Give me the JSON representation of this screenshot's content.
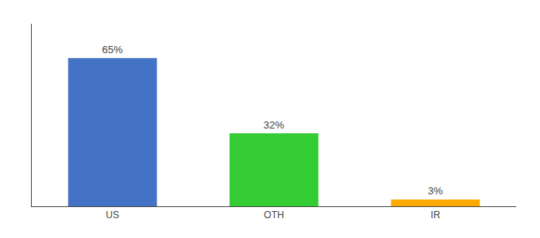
{
  "chart_data": {
    "type": "bar",
    "categories": [
      "US",
      "OTH",
      "IR"
    ],
    "values": [
      65,
      32,
      3
    ],
    "value_labels": [
      "65%",
      "32%",
      "3%"
    ],
    "data_labels": true,
    "colors": [
      "#4472c4",
      "#33cc33",
      "#ffaa00"
    ],
    "ylim": [
      0,
      80
    ],
    "tick_labels": "x",
    "grid": false
  }
}
